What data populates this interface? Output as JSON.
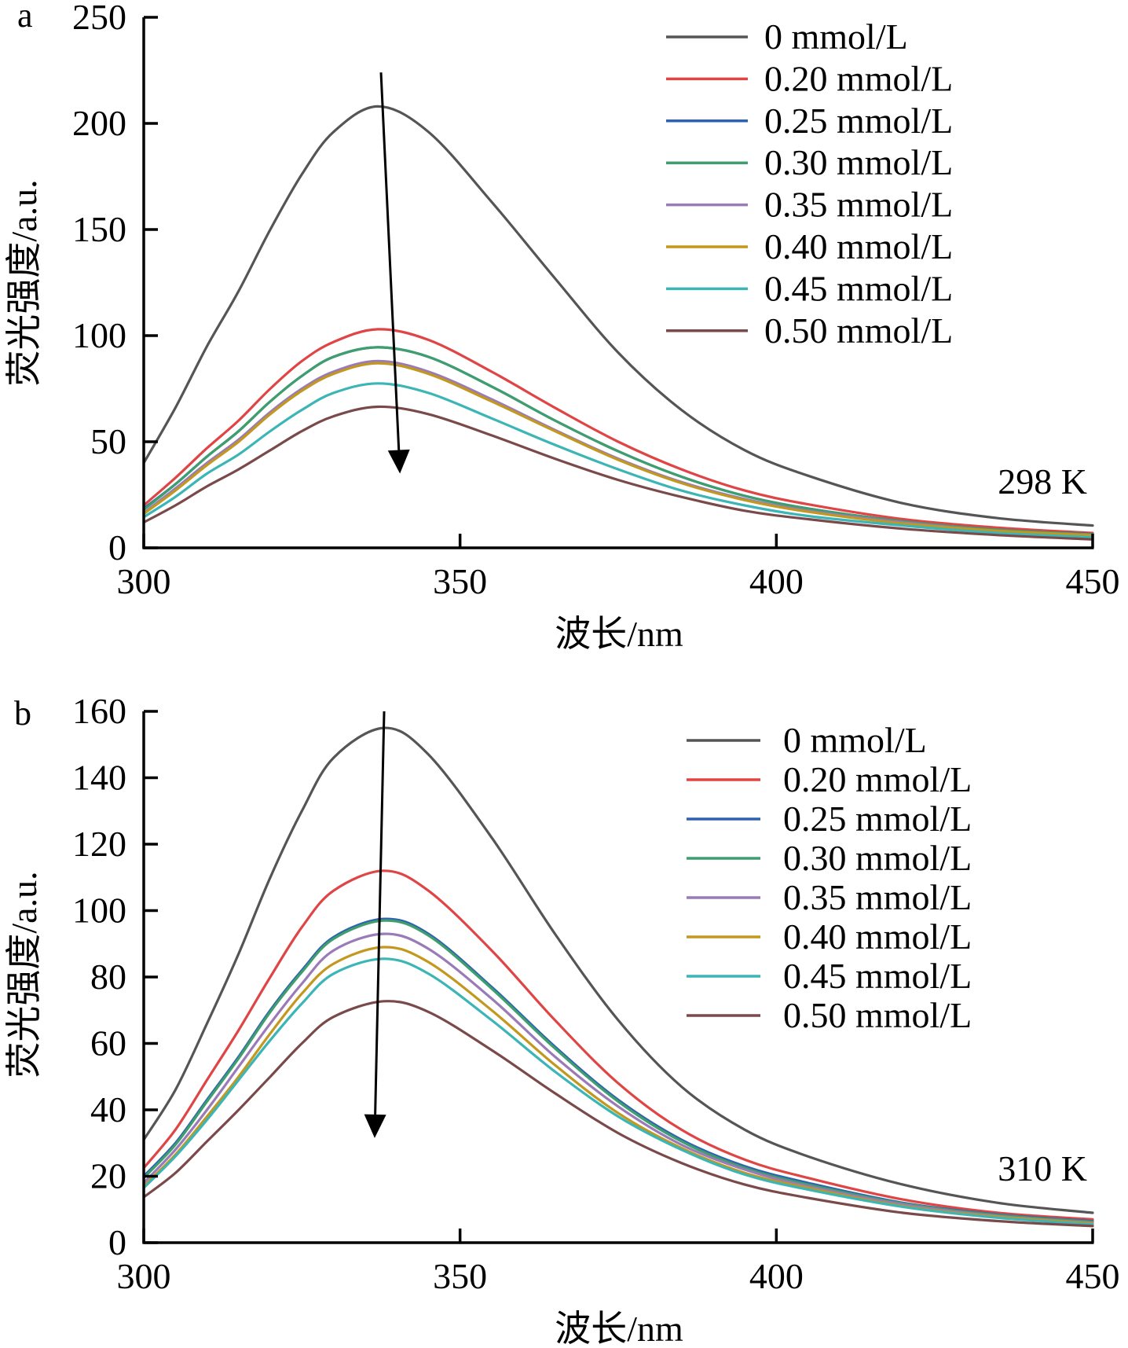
{
  "chart_data": [
    {
      "type": "line",
      "panel_label": "a",
      "annotation": "298 K",
      "xlabel": "波长/nm",
      "ylabel": "荧光强度/a.u.",
      "xlim": [
        300,
        450
      ],
      "ylim": [
        0,
        250
      ],
      "xticks": [
        300,
        350,
        400,
        450
      ],
      "yticks": [
        0,
        50,
        100,
        150,
        200,
        250
      ],
      "grid": false,
      "legend_position": "top-right",
      "arrow": {
        "meaning": "increasing concentration",
        "from": [
          337.5,
          224
        ],
        "to": [
          340.5,
          35
        ]
      },
      "x": [
        300,
        305,
        310,
        315,
        320,
        325,
        330,
        337,
        345,
        355,
        365,
        375,
        385,
        395,
        405,
        420,
        435,
        450
      ],
      "series": [
        {
          "name": "0 mmol/L",
          "color": "#555555",
          "values": [
            40,
            66,
            95,
            121,
            150,
            176,
            196,
            208,
            196,
            163,
            127,
            92,
            65,
            46,
            34,
            21,
            14,
            10.5
          ]
        },
        {
          "name": "0.20 mmol/L",
          "color": "#E04545",
          "values": [
            20,
            33,
            47,
            60,
            75,
            88,
            97,
            103,
            98,
            83,
            66,
            50,
            37,
            27,
            20.5,
            13.5,
            9.5,
            7
          ]
        },
        {
          "name": "0.25 mmol/L",
          "color": "#2E62B0",
          "values": [
            18.5,
            30,
            43,
            55,
            69,
            81,
            90,
            94.5,
            90,
            76,
            60,
            45.5,
            33.5,
            24.5,
            18.5,
            12.5,
            8.5,
            6.5
          ]
        },
        {
          "name": "0.30 mmol/L",
          "color": "#3E9E6E",
          "values": [
            18,
            30,
            43,
            55,
            69,
            81,
            90,
            94.5,
            90,
            76,
            60,
            45.5,
            33.5,
            24.5,
            18.5,
            12.5,
            8.5,
            6.3
          ]
        },
        {
          "name": "0.35 mmol/L",
          "color": "#9A7BB8",
          "values": [
            16.5,
            28,
            40,
            51,
            64,
            75,
            83,
            88,
            83,
            70,
            55.5,
            42,
            31,
            23,
            17.5,
            12,
            8,
            6
          ]
        },
        {
          "name": "0.40 mmol/L",
          "color": "#C2981E",
          "values": [
            16,
            27,
            39,
            50,
            63,
            74,
            82,
            87,
            82,
            69,
            55,
            41.5,
            30.5,
            22.5,
            17,
            11.5,
            8,
            6
          ]
        },
        {
          "name": "0.45 mmol/L",
          "color": "#3BB5B5",
          "values": [
            14.5,
            24,
            35,
            44,
            55,
            65,
            73,
            77.5,
            73,
            61,
            48.5,
            37,
            27,
            20,
            15,
            10.5,
            7,
            5
          ]
        },
        {
          "name": "0.50 mmol/L",
          "color": "#7A4A4A",
          "values": [
            12,
            20,
            29,
            37,
            46,
            55,
            62,
            66.5,
            63,
            53,
            42,
            32,
            24,
            17.5,
            13.5,
            9,
            6,
            4
          ]
        }
      ]
    },
    {
      "type": "line",
      "panel_label": "b",
      "annotation": "310 K",
      "xlabel": "波长/nm",
      "ylabel": "荧光强度/a.u.",
      "xlim": [
        300,
        450
      ],
      "ylim": [
        0,
        160
      ],
      "xticks": [
        300,
        350,
        400,
        450
      ],
      "yticks": [
        0,
        20,
        40,
        60,
        80,
        100,
        120,
        140,
        160
      ],
      "grid": false,
      "legend_position": "top-right",
      "arrow": {
        "meaning": "increasing concentration",
        "from": [
          338,
          160
        ],
        "to": [
          336.5,
          31.5
        ]
      },
      "x": [
        300,
        305,
        310,
        315,
        320,
        325,
        330,
        338,
        345,
        355,
        365,
        375,
        385,
        395,
        405,
        420,
        435,
        450
      ],
      "series": [
        {
          "name": "0 mmol/L",
          "color": "#555555",
          "values": [
            31,
            46,
            66,
            87,
            110,
            130,
            146,
            155,
            147,
            122,
            93,
            67,
            47,
            34,
            26,
            17.5,
            12,
            9
          ]
        },
        {
          "name": "0.20 mmol/L",
          "color": "#E04545",
          "values": [
            22.5,
            34,
            49,
            64,
            80,
            95,
            106,
            112,
            106,
            88,
            67,
            48,
            34,
            25,
            19.5,
            13,
            9,
            7
          ]
        },
        {
          "name": "0.25 mmol/L",
          "color": "#2E62B0",
          "values": [
            20,
            30,
            43,
            56,
            70,
            82,
            92,
            97.5,
            93,
            77,
            59,
            43,
            31,
            23,
            18,
            12,
            8.5,
            6.5
          ]
        },
        {
          "name": "0.30 mmol/L",
          "color": "#3E9E6E",
          "values": [
            19.5,
            29.5,
            42.5,
            55.5,
            69.5,
            81.5,
            91.5,
            97,
            92.5,
            76.5,
            58.5,
            42.5,
            30.5,
            22.5,
            17.5,
            11.8,
            8.3,
            6.3
          ]
        },
        {
          "name": "0.35 mmol/L",
          "color": "#9A7BB8",
          "values": [
            18,
            28,
            40,
            53,
            66,
            78,
            88,
            93,
            88.5,
            73.5,
            56,
            41,
            29.5,
            22,
            17,
            11.5,
            8,
            6
          ]
        },
        {
          "name": "0.40 mmol/L",
          "color": "#C2981E",
          "values": [
            17,
            26.5,
            38,
            50,
            63,
            75,
            84,
            89,
            84.5,
            70,
            53.5,
            39,
            28.5,
            21,
            16.5,
            11,
            7.8,
            5.8
          ]
        },
        {
          "name": "0.45 mmol/L",
          "color": "#3BB5B5",
          "values": [
            16.5,
            26,
            37,
            49,
            61,
            72,
            81,
            85.5,
            81,
            67,
            51.5,
            38,
            28,
            20.5,
            16,
            10.8,
            7.5,
            5.5
          ]
        },
        {
          "name": "0.50 mmol/L",
          "color": "#7A4A4A",
          "values": [
            13.7,
            21,
            30.5,
            40,
            50,
            60,
            68,
            72.7,
            69.5,
            58,
            45,
            33,
            24,
            17.5,
            13.5,
            9,
            6.5,
            5
          ]
        }
      ]
    }
  ]
}
